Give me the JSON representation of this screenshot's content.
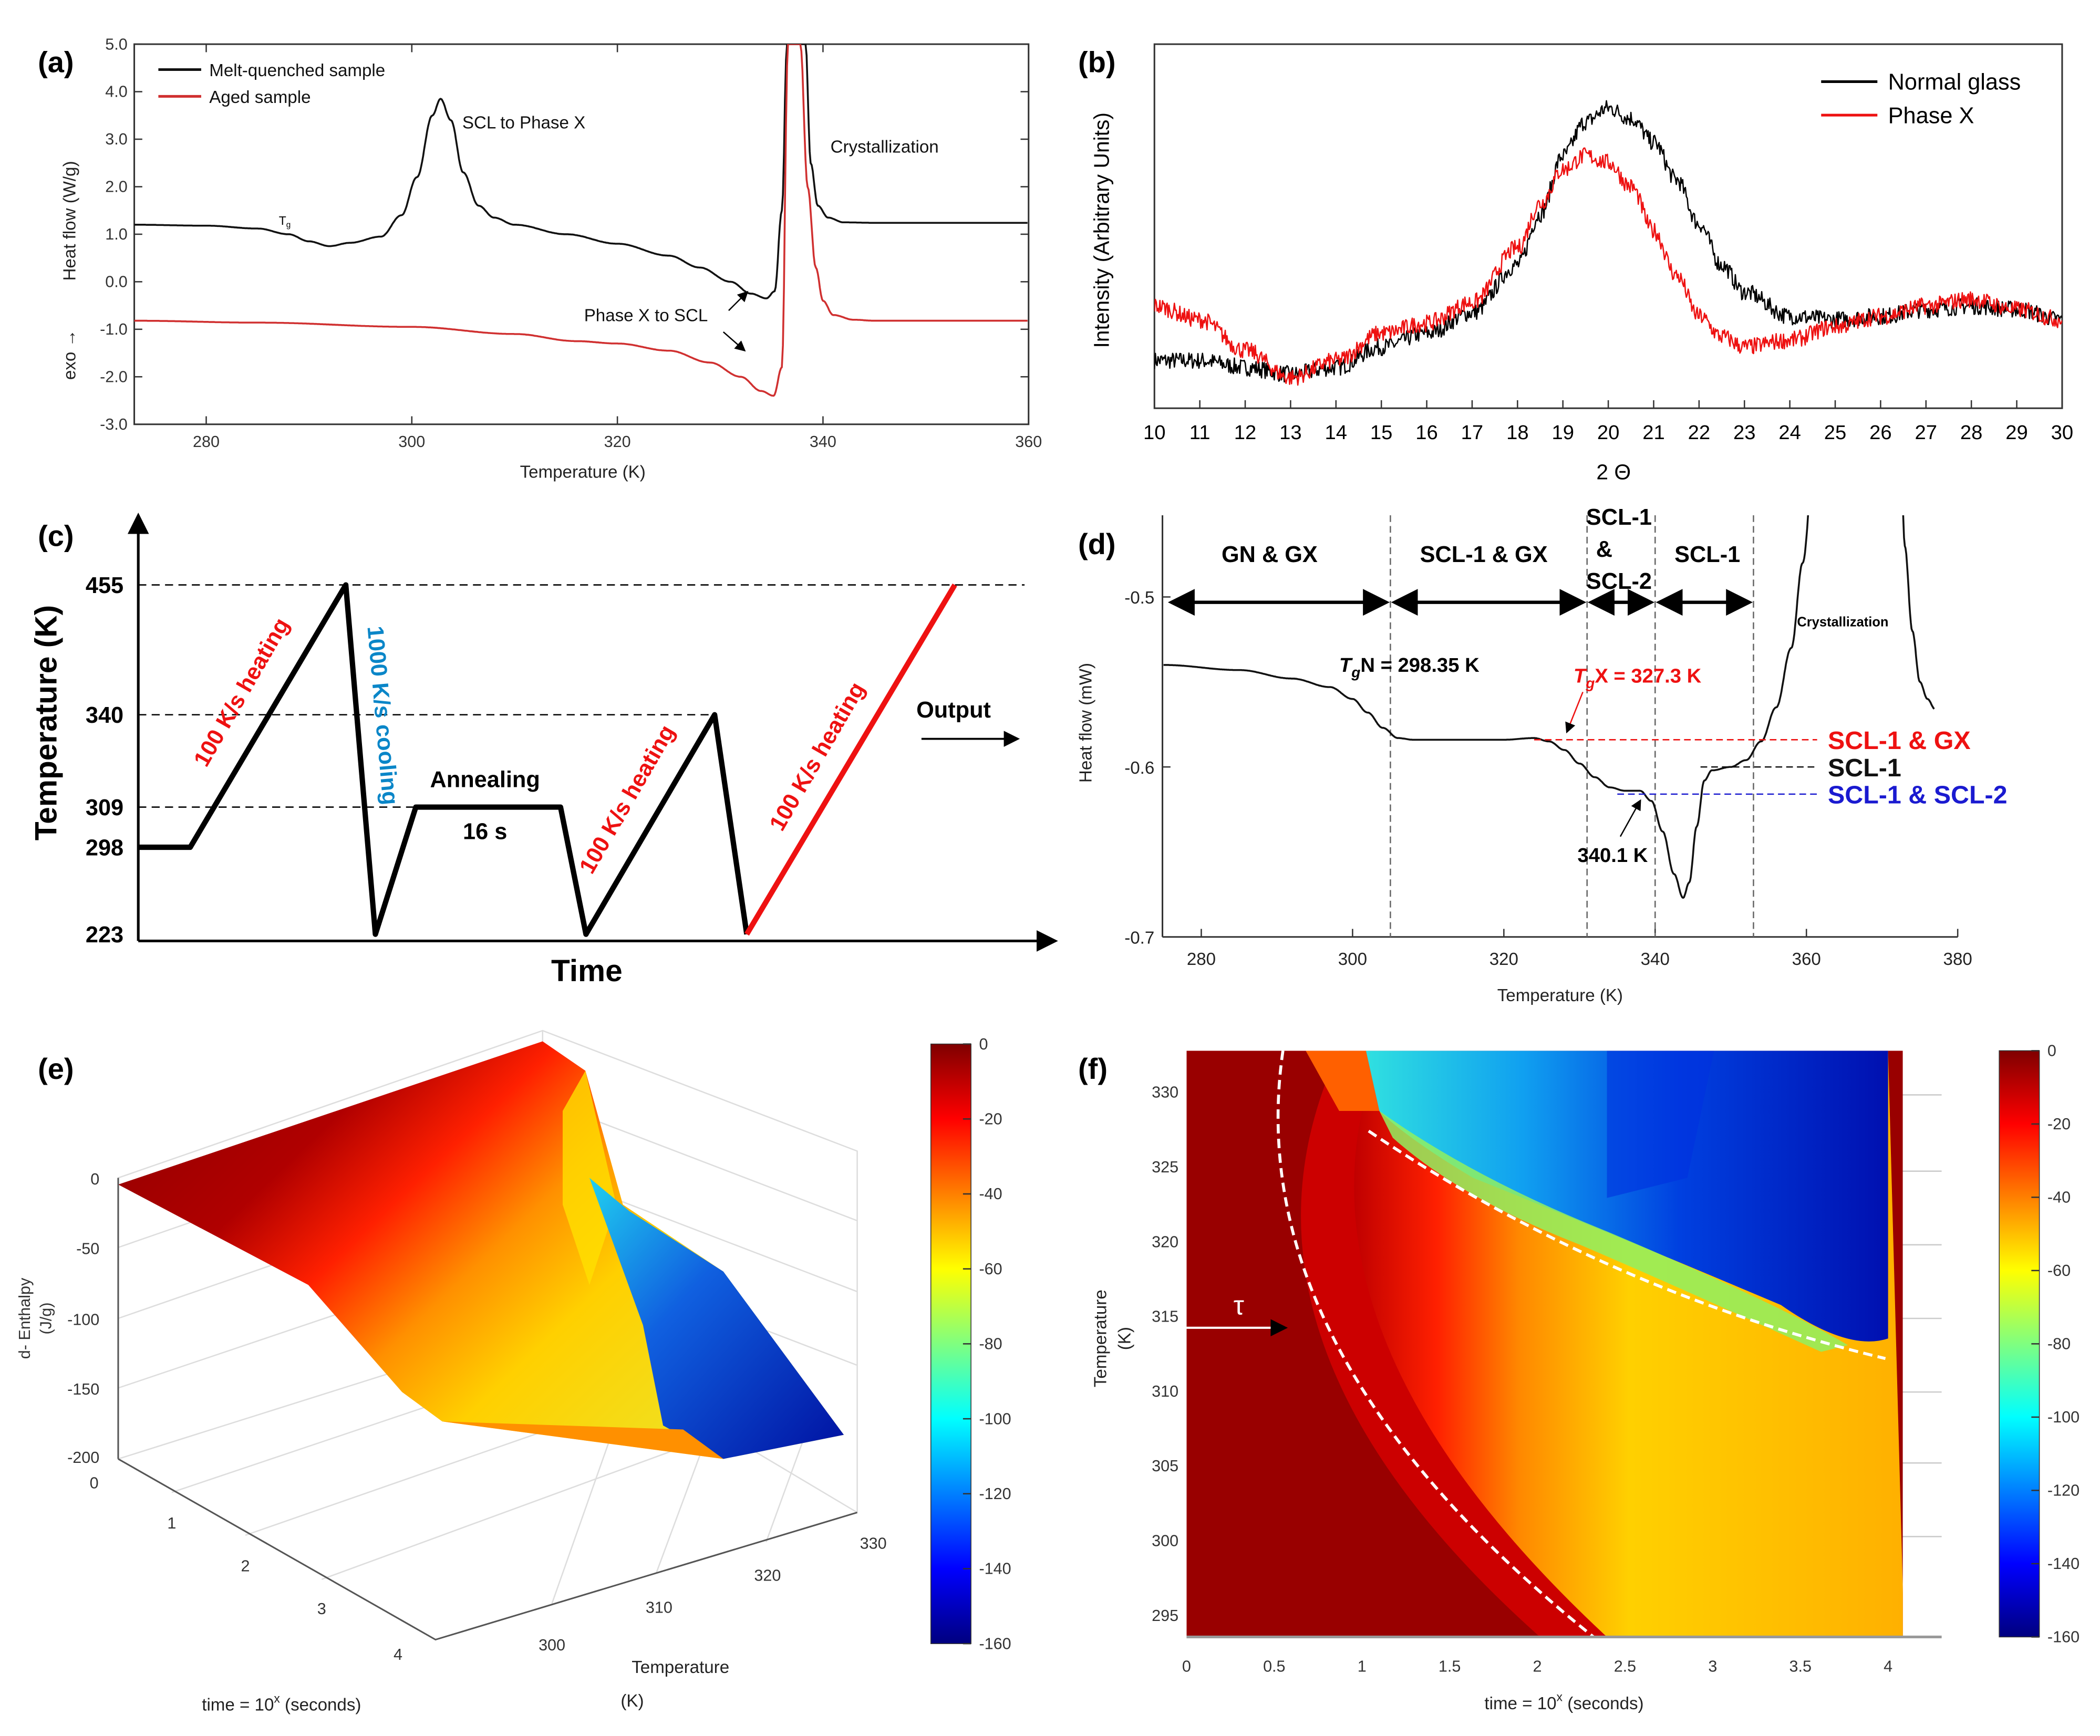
{
  "chart_data": [
    {
      "panel": "(a)",
      "type": "line",
      "xlabel": "Temperature (K)",
      "ylabel": "Heat flow (W/g)",
      "ylabel_extra": "exo →",
      "xlim": [
        273,
        360
      ],
      "ylim": [
        -3,
        5
      ],
      "xticks": [
        "280",
        "300",
        "320",
        "340",
        "360"
      ],
      "yticks": [
        "-3.0",
        "-2.0",
        "-1.0",
        "0.0",
        "1.0",
        "2.0",
        "3.0",
        "4.0",
        "5.0"
      ],
      "annotations": {
        "scl_to_x": "SCL to Phase X",
        "cryst": "Crystallization",
        "x_to_scl": "Phase X to SCL",
        "tg": "T",
        "tg_sub": "g"
      },
      "series": [
        {
          "name": "Melt-quenched sample",
          "color": "#111111",
          "x": [
            273,
            280,
            285,
            288,
            290,
            292,
            294,
            297,
            299,
            300.5,
            302,
            302.8,
            303.8,
            305,
            306.5,
            308,
            310,
            315,
            320,
            325,
            328,
            331,
            333,
            334.5,
            335.3,
            336,
            336.5,
            338.3,
            338.8,
            339.5,
            340.5,
            342,
            345,
            360
          ],
          "y": [
            1.2,
            1.18,
            1.12,
            1.0,
            0.85,
            0.75,
            0.82,
            0.95,
            1.4,
            2.2,
            3.5,
            3.85,
            3.4,
            2.3,
            1.6,
            1.35,
            1.2,
            1.0,
            0.8,
            0.55,
            0.3,
            0.0,
            -0.25,
            -0.35,
            -0.2,
            1.5,
            5,
            5,
            2.5,
            1.6,
            1.35,
            1.25,
            1.24,
            1.24
          ]
        },
        {
          "name": "Aged sample",
          "color": "#d03030",
          "x": [
            273,
            285,
            300,
            310,
            316,
            320,
            325,
            329,
            332,
            334,
            335.2,
            336,
            336.6,
            337.8,
            338.5,
            339.3,
            340,
            341,
            343,
            345,
            360
          ],
          "y": [
            -0.82,
            -0.86,
            -0.95,
            -1.1,
            -1.25,
            -1.3,
            -1.45,
            -1.7,
            -2.0,
            -2.3,
            -2.4,
            -1.8,
            5,
            5,
            2.0,
            0.3,
            -0.4,
            -0.7,
            -0.8,
            -0.82,
            -0.82
          ]
        }
      ]
    },
    {
      "panel": "(b)",
      "type": "line",
      "xlabel": "2 Θ",
      "ylabel": "Intensity (Arbitrary Units)",
      "xlim": [
        10,
        30
      ],
      "ylim": [
        0,
        1
      ],
      "xticks": [
        "10",
        "11",
        "12",
        "13",
        "14",
        "15",
        "16",
        "17",
        "18",
        "19",
        "20",
        "21",
        "22",
        "23",
        "24",
        "25",
        "26",
        "27",
        "28",
        "29",
        "30"
      ],
      "legend_position": "top-right",
      "series": [
        {
          "name": "Normal glass",
          "color": "#000000",
          "x": [
            10,
            11,
            12,
            13,
            14,
            15,
            16,
            17,
            18,
            18.5,
            19,
            19.5,
            20,
            20.5,
            21,
            21.5,
            22,
            22.5,
            23,
            24,
            25,
            26,
            27,
            28,
            29,
            30
          ],
          "y": [
            0.12,
            0.12,
            0.1,
            0.08,
            0.1,
            0.16,
            0.2,
            0.26,
            0.4,
            0.55,
            0.72,
            0.82,
            0.86,
            0.83,
            0.76,
            0.65,
            0.52,
            0.4,
            0.32,
            0.25,
            0.24,
            0.25,
            0.27,
            0.28,
            0.27,
            0.24
          ]
        },
        {
          "name": "Phase X",
          "color": "#ee1111",
          "x": [
            10,
            11,
            12,
            13,
            14,
            15,
            16,
            17,
            18,
            18.5,
            19,
            19.5,
            20,
            20.5,
            21,
            21.5,
            22,
            22.5,
            23,
            24,
            25,
            26,
            27,
            28,
            29,
            30
          ],
          "y": [
            0.28,
            0.24,
            0.15,
            0.07,
            0.12,
            0.2,
            0.23,
            0.29,
            0.45,
            0.58,
            0.68,
            0.72,
            0.7,
            0.63,
            0.5,
            0.37,
            0.25,
            0.19,
            0.16,
            0.18,
            0.22,
            0.25,
            0.28,
            0.3,
            0.27,
            0.24
          ]
        }
      ]
    },
    {
      "panel": "(c)",
      "type": "line",
      "xlabel": "Time",
      "ylabel": "Temperature (K)",
      "yticks": [
        "455",
        "340",
        "309",
        "298",
        "223"
      ],
      "profile_t": [
        0,
        1,
        4,
        4.57,
        5.35,
        8.14,
        8.63,
        11.11,
        11.73
      ],
      "profile_T": [
        298,
        298,
        455,
        223,
        309,
        309,
        223,
        340,
        223
      ],
      "final_t": [
        11.73,
        15.74
      ],
      "final_T": [
        223,
        455
      ],
      "labels": {
        "heat1": "100 K/s heating",
        "cool": "1000 K/s cooling",
        "anneal": "Annealing",
        "anneal_time": "16 s",
        "heat2": "100 K/s heating",
        "heat3": "100 K/s heating",
        "output": "Output"
      },
      "colors": {
        "heating": "#ee1111",
        "cooling": "#0a86c8"
      }
    },
    {
      "panel": "(d)",
      "type": "line",
      "xlabel": "Temperature (K)",
      "ylabel": "Heat flow (mW)",
      "xlim": [
        275,
        380
      ],
      "ylim": [
        -0.7,
        -0.5
      ],
      "xticks": [
        "280",
        "300",
        "320",
        "340",
        "360",
        "380"
      ],
      "yticks": [
        "-0.5",
        "-0.6",
        "-0.7"
      ],
      "region_bounds": [
        305,
        331,
        340,
        353
      ],
      "regions": [
        {
          "label": "GN & GX"
        },
        {
          "label": "SCL-1 & GX"
        },
        {
          "label1": "SCL-1",
          "label2": "&",
          "label3": "SCL-2"
        },
        {
          "label": "SCL-1"
        }
      ],
      "annotations": {
        "tgn_T": "T",
        "tgn_sub": "g",
        "tgn_rest": "N = 298.35 K",
        "tgx_T": "T",
        "tgx_sub": "g",
        "tgx_rest": "X = 327.3 K",
        "t340": "340.1 K",
        "cryst": "Crystallization"
      },
      "levels": [
        {
          "label": "SCL-1 & GX",
          "value": -0.584,
          "color": "#ee1111"
        },
        {
          "label": "SCL-1",
          "value": -0.6,
          "color": "#111111"
        },
        {
          "label": "SCL-1 & SCL-2",
          "value": -0.616,
          "color": "#1a1ad0"
        }
      ],
      "series": [
        {
          "name": "DSC",
          "color": "#111111",
          "x": [
            275,
            285,
            292,
            297,
            300,
            302,
            304,
            306,
            308,
            315,
            320,
            324,
            326,
            328,
            330,
            332,
            334,
            336,
            338,
            339.5,
            341,
            342.5,
            343.7,
            344.5,
            345.5,
            346.5,
            347.5,
            350,
            352,
            354,
            356,
            358,
            359.5,
            361
          ],
          "y": [
            -0.54,
            -0.543,
            -0.548,
            -0.553,
            -0.56,
            -0.568,
            -0.577,
            -0.583,
            -0.584,
            -0.584,
            -0.584,
            -0.583,
            -0.585,
            -0.59,
            -0.598,
            -0.606,
            -0.612,
            -0.614,
            -0.614,
            -0.62,
            -0.638,
            -0.663,
            -0.677,
            -0.668,
            -0.635,
            -0.608,
            -0.602,
            -0.6,
            -0.596,
            -0.585,
            -0.565,
            -0.53,
            -0.48,
            -0.42
          ]
        },
        {
          "name": "DSC-after",
          "color": "#111111",
          "x": [
            372.5,
            373,
            374,
            375,
            376,
            377
          ],
          "y": [
            -0.42,
            -0.47,
            -0.52,
            -0.55,
            -0.56,
            -0.566
          ]
        }
      ]
    },
    {
      "panel": "(e)",
      "type": "area",
      "xlabel": "time = 10",
      "xlabel_sup": "x",
      "xlabel_rest": " (seconds)",
      "ylabel": "Temperature",
      "ylabel2": "(K)",
      "zlabel": "d- Enthalpy",
      "zlabel2": "(J/g)",
      "xticks": [
        "0",
        "1",
        "2",
        "3",
        "4"
      ],
      "yticks": [
        "300",
        "310",
        "320",
        "330"
      ],
      "zticks": [
        "0",
        "-50",
        "-100",
        "-150",
        "-200"
      ],
      "colorbar_ticks": [
        "0",
        "-20",
        "-40",
        "-60",
        "-80",
        "-100",
        "-120",
        "-140",
        "-160"
      ],
      "colorbar_range": [
        -160,
        0
      ]
    },
    {
      "panel": "(f)",
      "type": "heatmap",
      "xlabel": "time = 10",
      "xlabel_sup": "x",
      "xlabel_rest": " (seconds)",
      "ylabel": "Temperature",
      "ylabel2": "(K)",
      "xlim": [
        0,
        4.1
      ],
      "ylim": [
        293,
        333
      ],
      "xticks": [
        "0",
        "0.5",
        "1",
        "1.5",
        "2",
        "2.5",
        "3",
        "3.5",
        "4"
      ],
      "yticks": [
        "295",
        "300",
        "305",
        "310",
        "315",
        "320",
        "325",
        "330"
      ],
      "colorbar_ticks": [
        "0",
        "-20",
        "-40",
        "-60",
        "-80",
        "-100",
        "-120",
        "-140",
        "-160"
      ],
      "colorbar_range": [
        -160,
        0
      ],
      "tau_label": "τ"
    }
  ]
}
